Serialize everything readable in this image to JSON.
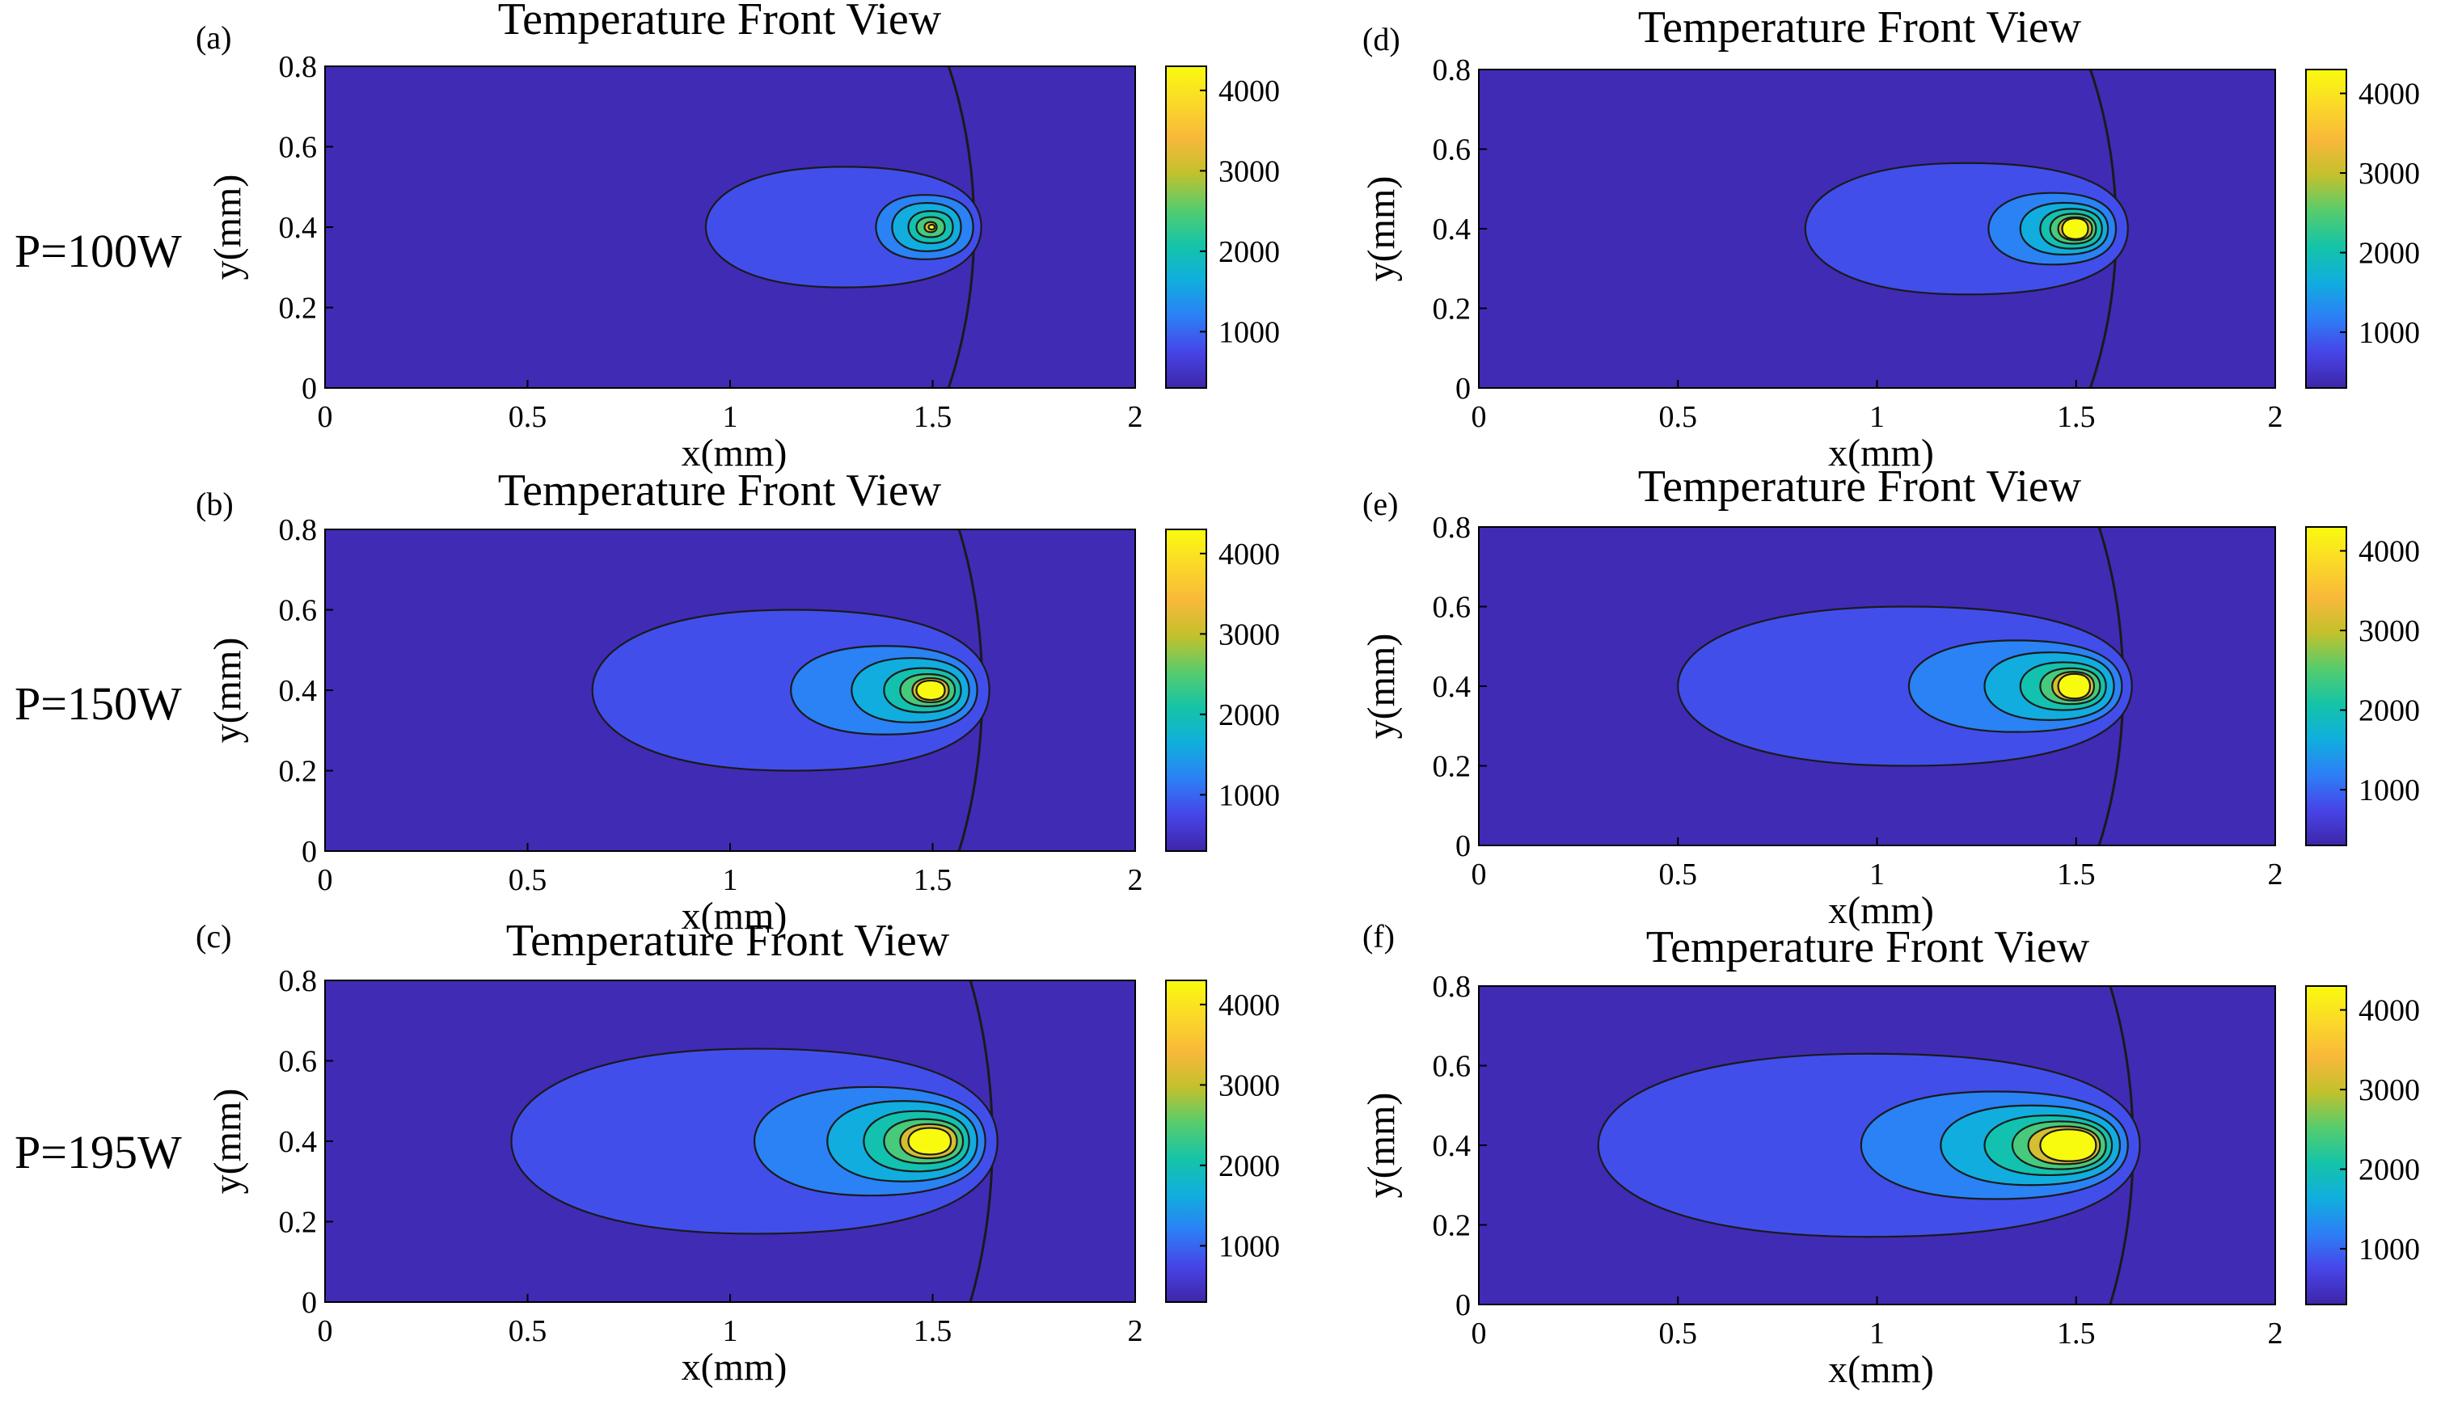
{
  "figure": {
    "row_labels": [
      "P=100W",
      "P=150W",
      "P=195W"
    ]
  },
  "colormap": {
    "name": "parula",
    "stops": [
      "#3e26a8",
      "#4744e8",
      "#2c7ff6",
      "#10aede",
      "#14c4a8",
      "#56cc6d",
      "#c2c12c",
      "#f9b83a",
      "#fbd928",
      "#f9fb0e"
    ]
  },
  "chart_data": [
    {
      "type": "heatmap",
      "panel": "(a)",
      "title": "Temperature  Front View",
      "xlabel": "x(mm)",
      "ylabel": "y(mm)",
      "xlim": [
        0,
        2
      ],
      "ylim": [
        0,
        0.8
      ],
      "xticks": [
        "0",
        "0.5",
        "1",
        "1.5",
        "2"
      ],
      "yticks": [
        "0",
        "0.2",
        "0.4",
        "0.6",
        "0.8"
      ],
      "colorbar": {
        "range": [
          300,
          4300
        ],
        "ticks": [
          "1000",
          "2000",
          "3000",
          "4000"
        ]
      },
      "hot_spot": {
        "x": 1.5,
        "y": 0.4
      },
      "contours": [
        {
          "level": 300,
          "x_tail": 1.28,
          "x_front": 1.67,
          "width": 1.6,
          "open": true
        },
        {
          "level": 700,
          "x_tail": 0.94,
          "x_front": 1.62,
          "width": 0.3
        },
        {
          "level": 1100,
          "x_tail": 1.36,
          "x_front": 1.6,
          "width": 0.16
        },
        {
          "level": 1500,
          "x_tail": 1.4,
          "x_front": 1.57,
          "width": 0.12
        },
        {
          "level": 1900,
          "x_tail": 1.44,
          "x_front": 1.55,
          "width": 0.08
        },
        {
          "level": 2300,
          "x_tail": 1.46,
          "x_front": 1.53,
          "width": 0.05
        },
        {
          "level": 3000,
          "x_tail": 1.48,
          "x_front": 1.51,
          "width": 0.025
        },
        {
          "level": 4200,
          "x_tail": 1.49,
          "x_front": 1.505,
          "width": 0.012
        }
      ]
    },
    {
      "type": "heatmap",
      "panel": "(b)",
      "title": "Temperature  Front View",
      "xlabel": "x(mm)",
      "ylabel": "y(mm)",
      "xlim": [
        0,
        2
      ],
      "ylim": [
        0,
        0.8
      ],
      "xticks": [
        "0",
        "0.5",
        "1",
        "1.5",
        "2"
      ],
      "yticks": [
        "0",
        "0.2",
        "0.4",
        "0.6",
        "0.8"
      ],
      "colorbar": {
        "range": [
          300,
          4300
        ],
        "ticks": [
          "1000",
          "2000",
          "3000",
          "4000"
        ]
      },
      "hot_spot": {
        "x": 1.5,
        "y": 0.4
      },
      "contours": [
        {
          "level": 300,
          "x_tail": 1.33,
          "x_front": 1.68,
          "width": 1.6,
          "open": true
        },
        {
          "level": 700,
          "x_tail": 0.66,
          "x_front": 1.64,
          "width": 0.4
        },
        {
          "level": 1100,
          "x_tail": 1.15,
          "x_front": 1.61,
          "width": 0.22
        },
        {
          "level": 1500,
          "x_tail": 1.3,
          "x_front": 1.59,
          "width": 0.16
        },
        {
          "level": 1900,
          "x_tail": 1.38,
          "x_front": 1.57,
          "width": 0.11
        },
        {
          "level": 2300,
          "x_tail": 1.42,
          "x_front": 1.555,
          "width": 0.08
        },
        {
          "level": 3000,
          "x_tail": 1.45,
          "x_front": 1.54,
          "width": 0.06
        },
        {
          "level": 4200,
          "x_tail": 1.46,
          "x_front": 1.53,
          "width": 0.048
        }
      ]
    },
    {
      "type": "heatmap",
      "panel": "(c)",
      "title": "Temperature  Front View",
      "xlabel": "x(mm)",
      "ylabel": "y(mm)",
      "xlim": [
        0,
        2
      ],
      "ylim": [
        0,
        0.8
      ],
      "xticks": [
        "0",
        "0.5",
        "1",
        "1.5",
        "2"
      ],
      "yticks": [
        "0",
        "0.2",
        "0.4",
        "0.6",
        "0.8"
      ],
      "colorbar": {
        "range": [
          300,
          4300
        ],
        "ticks": [
          "1000",
          "2000",
          "3000",
          "4000"
        ]
      },
      "hot_spot": {
        "x": 1.5,
        "y": 0.4
      },
      "contours": [
        {
          "level": 300,
          "x_tail": 1.37,
          "x_front": 1.7,
          "width": 1.6,
          "open": true
        },
        {
          "level": 700,
          "x_tail": 0.46,
          "x_front": 1.66,
          "width": 0.46
        },
        {
          "level": 1100,
          "x_tail": 1.06,
          "x_front": 1.63,
          "width": 0.27
        },
        {
          "level": 1500,
          "x_tail": 1.24,
          "x_front": 1.61,
          "width": 0.2
        },
        {
          "level": 1900,
          "x_tail": 1.33,
          "x_front": 1.59,
          "width": 0.15
        },
        {
          "level": 2300,
          "x_tail": 1.38,
          "x_front": 1.575,
          "width": 0.11
        },
        {
          "level": 3000,
          "x_tail": 1.42,
          "x_front": 1.56,
          "width": 0.085
        },
        {
          "level": 4200,
          "x_tail": 1.44,
          "x_front": 1.545,
          "width": 0.066
        }
      ]
    },
    {
      "type": "heatmap",
      "panel": "(d)",
      "title": "Temperature  Front View",
      "xlabel": "x(mm)",
      "ylabel": "y(mm)",
      "xlim": [
        0,
        2
      ],
      "ylim": [
        0,
        0.8
      ],
      "xticks": [
        "0",
        "0.5",
        "1",
        "1.5",
        "2"
      ],
      "yticks": [
        "0",
        "0.2",
        "0.4",
        "0.6",
        "0.8"
      ],
      "colorbar": {
        "range": [
          300,
          4300
        ],
        "ticks": [
          "1000",
          "2000",
          "3000",
          "4000"
        ]
      },
      "hot_spot": {
        "x": 1.5,
        "y": 0.4
      },
      "contours": [
        {
          "level": 300,
          "x_tail": 1.27,
          "x_front": 1.67,
          "width": 1.6,
          "open": true
        },
        {
          "level": 700,
          "x_tail": 0.82,
          "x_front": 1.63,
          "width": 0.33
        },
        {
          "level": 1100,
          "x_tail": 1.28,
          "x_front": 1.6,
          "width": 0.18
        },
        {
          "level": 1500,
          "x_tail": 1.36,
          "x_front": 1.58,
          "width": 0.13
        },
        {
          "level": 1900,
          "x_tail": 1.41,
          "x_front": 1.565,
          "width": 0.1
        },
        {
          "level": 2300,
          "x_tail": 1.435,
          "x_front": 1.55,
          "width": 0.075
        },
        {
          "level": 3000,
          "x_tail": 1.455,
          "x_front": 1.54,
          "width": 0.058
        },
        {
          "level": 4200,
          "x_tail": 1.465,
          "x_front": 1.53,
          "width": 0.052
        }
      ]
    },
    {
      "type": "heatmap",
      "panel": "(e)",
      "title": "Temperature  Front View",
      "xlabel": "x(mm)",
      "ylabel": "y(mm)",
      "xlim": [
        0,
        2
      ],
      "ylim": [
        0,
        0.8
      ],
      "xticks": [
        "0",
        "0.5",
        "1",
        "1.5",
        "2"
      ],
      "yticks": [
        "0",
        "0.2",
        "0.4",
        "0.6",
        "0.8"
      ],
      "colorbar": {
        "range": [
          300,
          4300
        ],
        "ticks": [
          "1000",
          "2000",
          "3000",
          "4000"
        ]
      },
      "hot_spot": {
        "x": 1.5,
        "y": 0.4
      },
      "contours": [
        {
          "level": 300,
          "x_tail": 1.31,
          "x_front": 1.68,
          "width": 1.6,
          "open": true
        },
        {
          "level": 700,
          "x_tail": 0.5,
          "x_front": 1.64,
          "width": 0.4
        },
        {
          "level": 1100,
          "x_tail": 1.08,
          "x_front": 1.615,
          "width": 0.23
        },
        {
          "level": 1500,
          "x_tail": 1.27,
          "x_front": 1.595,
          "width": 0.17
        },
        {
          "level": 1900,
          "x_tail": 1.36,
          "x_front": 1.575,
          "width": 0.12
        },
        {
          "level": 2300,
          "x_tail": 1.41,
          "x_front": 1.56,
          "width": 0.09
        },
        {
          "level": 3000,
          "x_tail": 1.44,
          "x_front": 1.545,
          "width": 0.072
        },
        {
          "level": 4200,
          "x_tail": 1.455,
          "x_front": 1.535,
          "width": 0.062
        }
      ]
    },
    {
      "type": "heatmap",
      "panel": "(f)",
      "title": "Temperature  Front View",
      "xlabel": "x(mm)",
      "ylabel": "y(mm)",
      "xlim": [
        0,
        2
      ],
      "ylim": [
        0,
        0.8
      ],
      "xticks": [
        "0",
        "0.5",
        "1",
        "1.5",
        "2"
      ],
      "yticks": [
        "0",
        "0.2",
        "0.4",
        "0.6",
        "0.8"
      ],
      "colorbar": {
        "range": [
          300,
          4300
        ],
        "ticks": [
          "1000",
          "2000",
          "3000",
          "4000"
        ]
      },
      "hot_spot": {
        "x": 1.5,
        "y": 0.4
      },
      "contours": [
        {
          "level": 300,
          "x_tail": 1.35,
          "x_front": 1.7,
          "width": 1.6,
          "open": true
        },
        {
          "level": 700,
          "x_tail": 0.3,
          "x_front": 1.66,
          "width": 0.46
        },
        {
          "level": 1100,
          "x_tail": 0.96,
          "x_front": 1.63,
          "width": 0.27
        },
        {
          "level": 1500,
          "x_tail": 1.16,
          "x_front": 1.61,
          "width": 0.2
        },
        {
          "level": 1900,
          "x_tail": 1.27,
          "x_front": 1.59,
          "width": 0.15
        },
        {
          "level": 2300,
          "x_tail": 1.34,
          "x_front": 1.575,
          "width": 0.12
        },
        {
          "level": 3000,
          "x_tail": 1.38,
          "x_front": 1.56,
          "width": 0.095
        },
        {
          "level": 4200,
          "x_tail": 1.41,
          "x_front": 1.55,
          "width": 0.08
        }
      ]
    }
  ]
}
